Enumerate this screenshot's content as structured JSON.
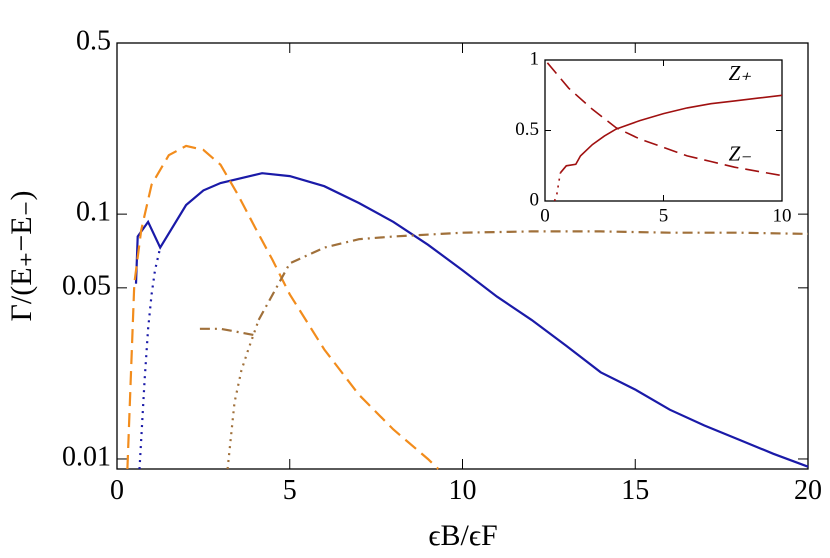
{
  "chart_data": [
    {
      "type": "line",
      "xlabel": "ϵB/ϵF",
      "ylabel": "Γ/(E₊−E₋)",
      "yscale": "log",
      "xlim": [
        0,
        20
      ],
      "ylim": [
        0.0091,
        0.5
      ],
      "xticks": [
        0,
        5,
        10,
        15,
        20
      ],
      "yticks": [
        0.01,
        0.05,
        0.1,
        0.5
      ],
      "series": [
        {
          "color": "#1a1aa8",
          "style": "solid",
          "x": [
            0.55,
            0.6,
            0.9,
            1.25,
            2,
            2.5,
            3,
            4.2,
            5,
            6,
            7,
            8,
            9,
            10,
            11,
            12,
            13,
            14,
            15,
            16,
            17,
            18,
            19,
            20
          ],
          "values": [
            0.052,
            0.081,
            0.093,
            0.073,
            0.109,
            0.125,
            0.134,
            0.147,
            0.143,
            0.13,
            0.111,
            0.093,
            0.075,
            0.059,
            0.046,
            0.037,
            0.029,
            0.0226,
            0.0192,
            0.0159,
            0.0137,
            0.012,
            0.0105,
            0.0093
          ]
        },
        {
          "color": "#1a1aa8",
          "style": "dotted",
          "x": [
            0.65,
            0.7,
            0.8,
            0.9,
            1.0,
            1.1,
            1.25
          ],
          "values": [
            0.0091,
            0.012,
            0.021,
            0.034,
            0.047,
            0.059,
            0.073
          ]
        },
        {
          "color": "#f28c1c",
          "style": "dashed",
          "x": [
            0.3,
            0.5,
            0.7,
            1.0,
            1.5,
            2.0,
            2.5,
            3,
            3.5,
            4,
            4.5,
            5,
            6,
            7,
            8,
            9,
            9.3
          ],
          "values": [
            0.0091,
            0.052,
            0.086,
            0.132,
            0.174,
            0.19,
            0.183,
            0.159,
            0.12,
            0.088,
            0.065,
            0.047,
            0.028,
            0.0183,
            0.0132,
            0.01,
            0.0091
          ]
        },
        {
          "color": "#a0703a",
          "style": "dashdot",
          "x": [
            2.4,
            3,
            3.5,
            4
          ],
          "values": [
            0.034,
            0.034,
            0.033,
            0.032
          ]
        },
        {
          "color": "#a0703a",
          "style": "dashdot",
          "x": [
            4.1,
            5,
            6,
            7,
            8,
            10,
            12,
            14,
            16,
            18,
            20
          ],
          "values": [
            0.037,
            0.063,
            0.073,
            0.079,
            0.081,
            0.084,
            0.085,
            0.085,
            0.084,
            0.084,
            0.083
          ]
        },
        {
          "color": "#a0703a",
          "style": "dotted",
          "x": [
            3.2,
            3.4,
            3.6,
            3.8,
            4.1
          ],
          "values": [
            0.0091,
            0.017,
            0.023,
            0.028,
            0.037
          ]
        }
      ]
    },
    {
      "type": "line",
      "xlim": [
        0,
        10
      ],
      "ylim": [
        0,
        1
      ],
      "xticks": [
        0,
        5,
        10
      ],
      "yticks": [
        0,
        0.5,
        1
      ],
      "series": [
        {
          "name": "Z₊",
          "color": "#a01010",
          "style": "solid",
          "x": [
            0.65,
            0.9,
            1.3,
            1.5,
            2,
            2.5,
            3,
            4,
            5,
            6,
            7,
            8,
            9,
            10
          ],
          "values": [
            0.2,
            0.25,
            0.26,
            0.32,
            0.4,
            0.46,
            0.51,
            0.57,
            0.62,
            0.66,
            0.69,
            0.71,
            0.73,
            0.75
          ]
        },
        {
          "color": "#a01010",
          "style": "dotted",
          "x": [
            0.4,
            0.5,
            0.6,
            0.65
          ],
          "values": [
            0,
            0.05,
            0.15,
            0.2
          ]
        },
        {
          "name": "Z₋",
          "color": "#a01010",
          "style": "dashed",
          "x": [
            0.1,
            0.5,
            1,
            2,
            3,
            4,
            5,
            6,
            7,
            8,
            9,
            10
          ],
          "values": [
            0.98,
            0.9,
            0.8,
            0.65,
            0.52,
            0.44,
            0.38,
            0.32,
            0.28,
            0.24,
            0.21,
            0.18
          ]
        }
      ]
    }
  ]
}
